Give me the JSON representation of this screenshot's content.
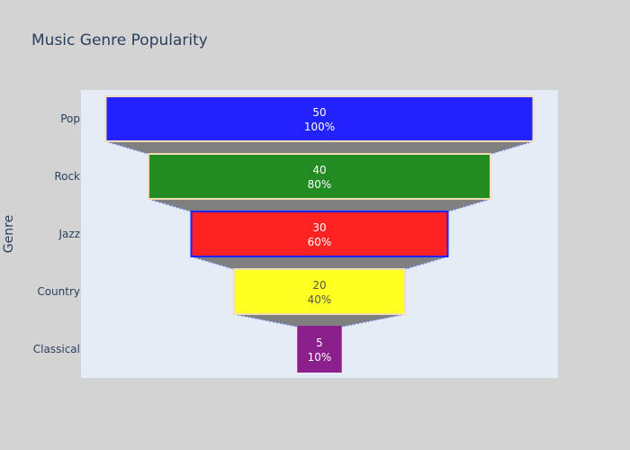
{
  "chart_data": {
    "type": "funnel",
    "title": "Music Genre Popularity",
    "ylabel": "Genre",
    "xlabel": "",
    "categories": [
      "Pop",
      "Rock",
      "Jazz",
      "Country",
      "Classical"
    ],
    "values": [
      50,
      40,
      30,
      20,
      5
    ],
    "percent_labels": [
      "100%",
      "80%",
      "60%",
      "40%",
      "10%"
    ],
    "colors": [
      "#2222ff",
      "#228b22",
      "#ff2222",
      "#ffff22",
      "#8b1f8b"
    ],
    "border_colors": [
      "#f5deb3",
      "#f5deb3",
      "#2222ff",
      "#f5deb3",
      "#8b1f8b"
    ],
    "text_colors": [
      "#ffffff",
      "#ffffff",
      "#ffffff",
      "#555555",
      "#ffffff"
    ],
    "connector_fill": "#808080",
    "connector_line": "#6b85d6",
    "plot_bgcolor": "#e5ecf6",
    "paper_bgcolor": "#d3d3d3",
    "grid": false,
    "legend": "none"
  }
}
